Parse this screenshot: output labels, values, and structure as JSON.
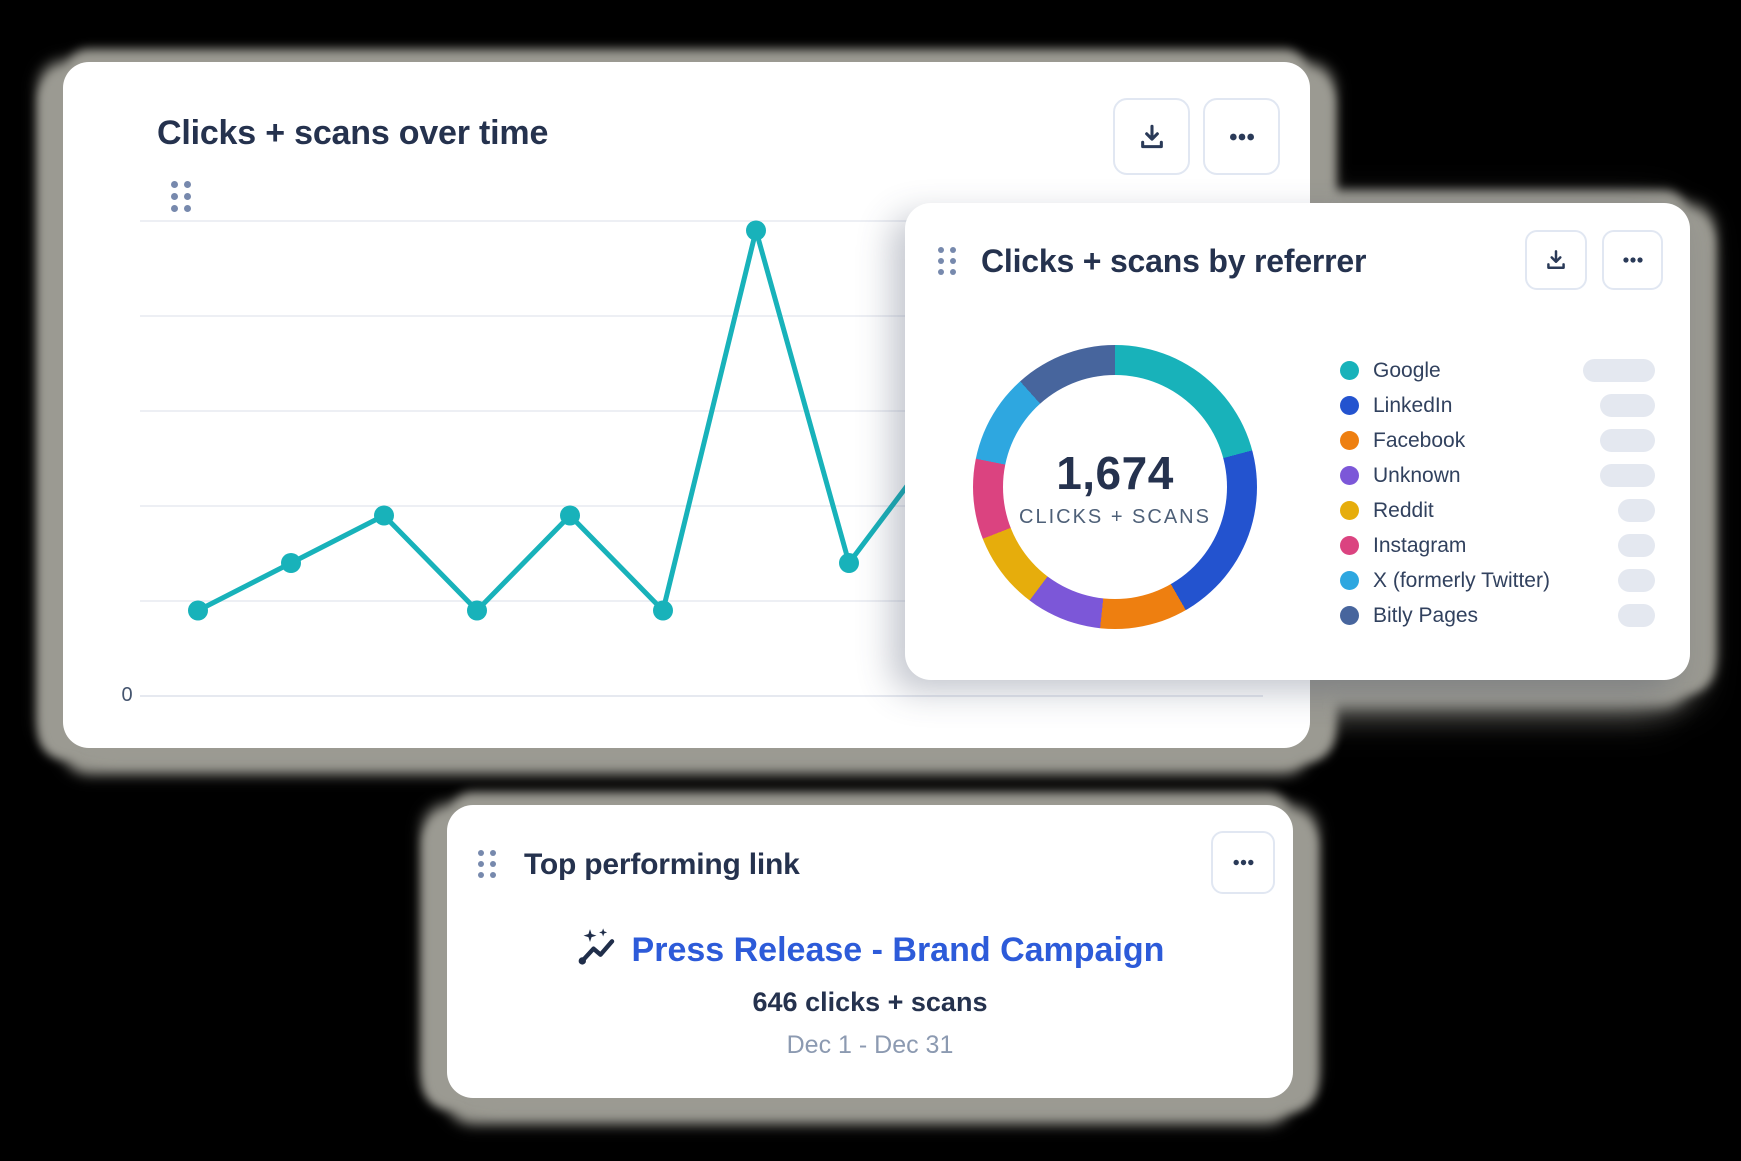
{
  "overtime_card": {
    "title": "Clicks + scans over time",
    "y_axis_zero_label": "0"
  },
  "referrer_card": {
    "title": "Clicks + scans by referrer",
    "center_value": "1,674",
    "center_label": "CLICKS + SCANS",
    "skeleton_pill_widths": [
      72,
      55,
      55,
      55,
      37,
      37,
      37,
      37
    ]
  },
  "top_link_card": {
    "title": "Top performing link",
    "link_text": "Press Release - Brand Campaign",
    "clicks_text": "646 clicks + scans",
    "date_range": "Dec 1 - Dec 31"
  },
  "icons": [
    "drag-handle-icon",
    "download-icon",
    "ellipsis-icon",
    "trend-sparkle-icon"
  ],
  "colors": {
    "page_background": "#000000",
    "card_background": "#ffffff",
    "card_shadow": "#9b9a92",
    "title_text": "#25324e",
    "secondary_text": "#4e6078",
    "legend_text": "#31415e",
    "date_text": "#8c9ab1",
    "link_blue": "#2d5bd9",
    "pill_gray": "#e4e8f0",
    "button_border": "#e1e7f2",
    "gridline": "#edeff4",
    "axis_line": "#e6e9f0",
    "line_teal": "#18b2ba"
  },
  "chart_data": [
    {
      "type": "line",
      "title": "Clicks + scans over time",
      "x": [
        1,
        2,
        3,
        4,
        5,
        6,
        7,
        8,
        9
      ],
      "values": [
        18,
        28,
        38,
        18,
        38,
        18,
        98,
        28,
        54
      ],
      "note": "9th point partially hidden behind overlapping referrer card",
      "ylim": [
        0,
        100
      ],
      "y_gridlines": [
        0,
        20,
        40,
        60,
        80,
        100
      ],
      "visible_y_tick_labels": [
        "0"
      ],
      "line_color": "#18b2ba",
      "grid": true,
      "legend_position": "none"
    },
    {
      "type": "donut",
      "title": "Clicks + scans by referrer",
      "total": 1674,
      "center_value_label": "1,674",
      "center_sub_label": "CLICKS + SCANS",
      "start_angle_deg": 0,
      "legend_position": "right",
      "segments": [
        {
          "label": "Google",
          "value": 349,
          "color": "#18b2ba"
        },
        {
          "label": "LinkedIn",
          "value": 349,
          "color": "#2353cf"
        },
        {
          "label": "Facebook",
          "value": 167,
          "color": "#ee7f10"
        },
        {
          "label": "Unknown",
          "value": 144,
          "color": "#7c57d8"
        },
        {
          "label": "Reddit",
          "value": 147,
          "color": "#e6ad0c"
        },
        {
          "label": "Instagram",
          "value": 153,
          "color": "#db4380"
        },
        {
          "label": "X (formerly Twitter)",
          "value": 170,
          "color": "#2ea7e0"
        },
        {
          "label": "Bitly Pages",
          "value": 195,
          "color": "#47659d"
        }
      ]
    }
  ]
}
